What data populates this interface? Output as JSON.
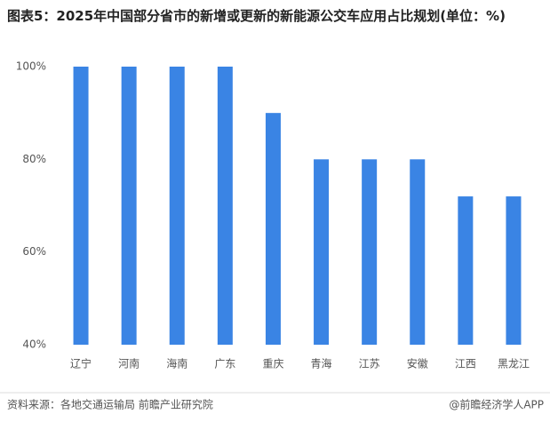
{
  "chart_data": {
    "type": "bar",
    "title": "图表5：2025年中国部分省市的新增或更新的新能源公交车应用占比规划(单位：%)",
    "categories": [
      "辽宁",
      "河南",
      "海南",
      "广东",
      "重庆",
      "青海",
      "江苏",
      "安徽",
      "江西",
      "黑龙江"
    ],
    "values": [
      100,
      100,
      100,
      100,
      90,
      80,
      80,
      80,
      72,
      72
    ],
    "color": "#3a84e4",
    "ylim": [
      40,
      100
    ],
    "yticks": [
      {
        "value": 40,
        "label": "40%"
      },
      {
        "value": 60,
        "label": "60%"
      },
      {
        "value": 80,
        "label": "80%"
      },
      {
        "value": 100,
        "label": "100%"
      }
    ],
    "grid": false,
    "source": "资料来源：各地交通运输局 前瞻产业研究院",
    "credit": "@前瞻经济学人APP"
  }
}
